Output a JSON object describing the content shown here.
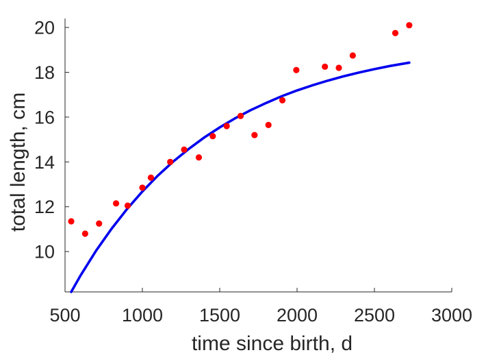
{
  "chart_data": {
    "type": "scatter",
    "title": "",
    "xlabel": "time since birth, d",
    "ylabel": "total length, cm",
    "xlim": [
      500,
      3000
    ],
    "ylim": [
      8.2,
      20.4
    ],
    "xticks": [
      500,
      1000,
      1500,
      2000,
      2500,
      3000
    ],
    "yticks": [
      10,
      12,
      14,
      16,
      18,
      20
    ],
    "grid": false,
    "legend": "none",
    "series": [
      {
        "kind": "points",
        "color": "#ff0000",
        "x": [
          540,
          630,
          720,
          830,
          905,
          1000,
          1055,
          1180,
          1270,
          1365,
          1455,
          1545,
          1635,
          1725,
          1815,
          1905,
          1995,
          2180,
          2270,
          2360,
          2635,
          2725
        ],
        "y": [
          11.35,
          10.8,
          11.25,
          12.15,
          12.05,
          12.85,
          13.3,
          14.0,
          14.55,
          14.2,
          15.15,
          15.6,
          16.05,
          15.2,
          15.65,
          16.75,
          18.1,
          18.25,
          18.2,
          18.75,
          19.75,
          20.1
        ]
      },
      {
        "kind": "curve",
        "color": "#0000ee",
        "x": [
          540,
          600,
          700,
          800,
          900,
          1000,
          1100,
          1200,
          1300,
          1400,
          1500,
          1600,
          1700,
          1800,
          1900,
          2000,
          2100,
          2200,
          2300,
          2400,
          2500,
          2600,
          2725
        ],
        "y": [
          8.2,
          8.93,
          10.03,
          11.01,
          11.89,
          12.68,
          13.39,
          14.02,
          14.58,
          15.09,
          15.54,
          15.95,
          16.31,
          16.63,
          16.93,
          17.19,
          17.42,
          17.63,
          17.82,
          17.99,
          18.14,
          18.28,
          18.43
        ]
      }
    ]
  }
}
